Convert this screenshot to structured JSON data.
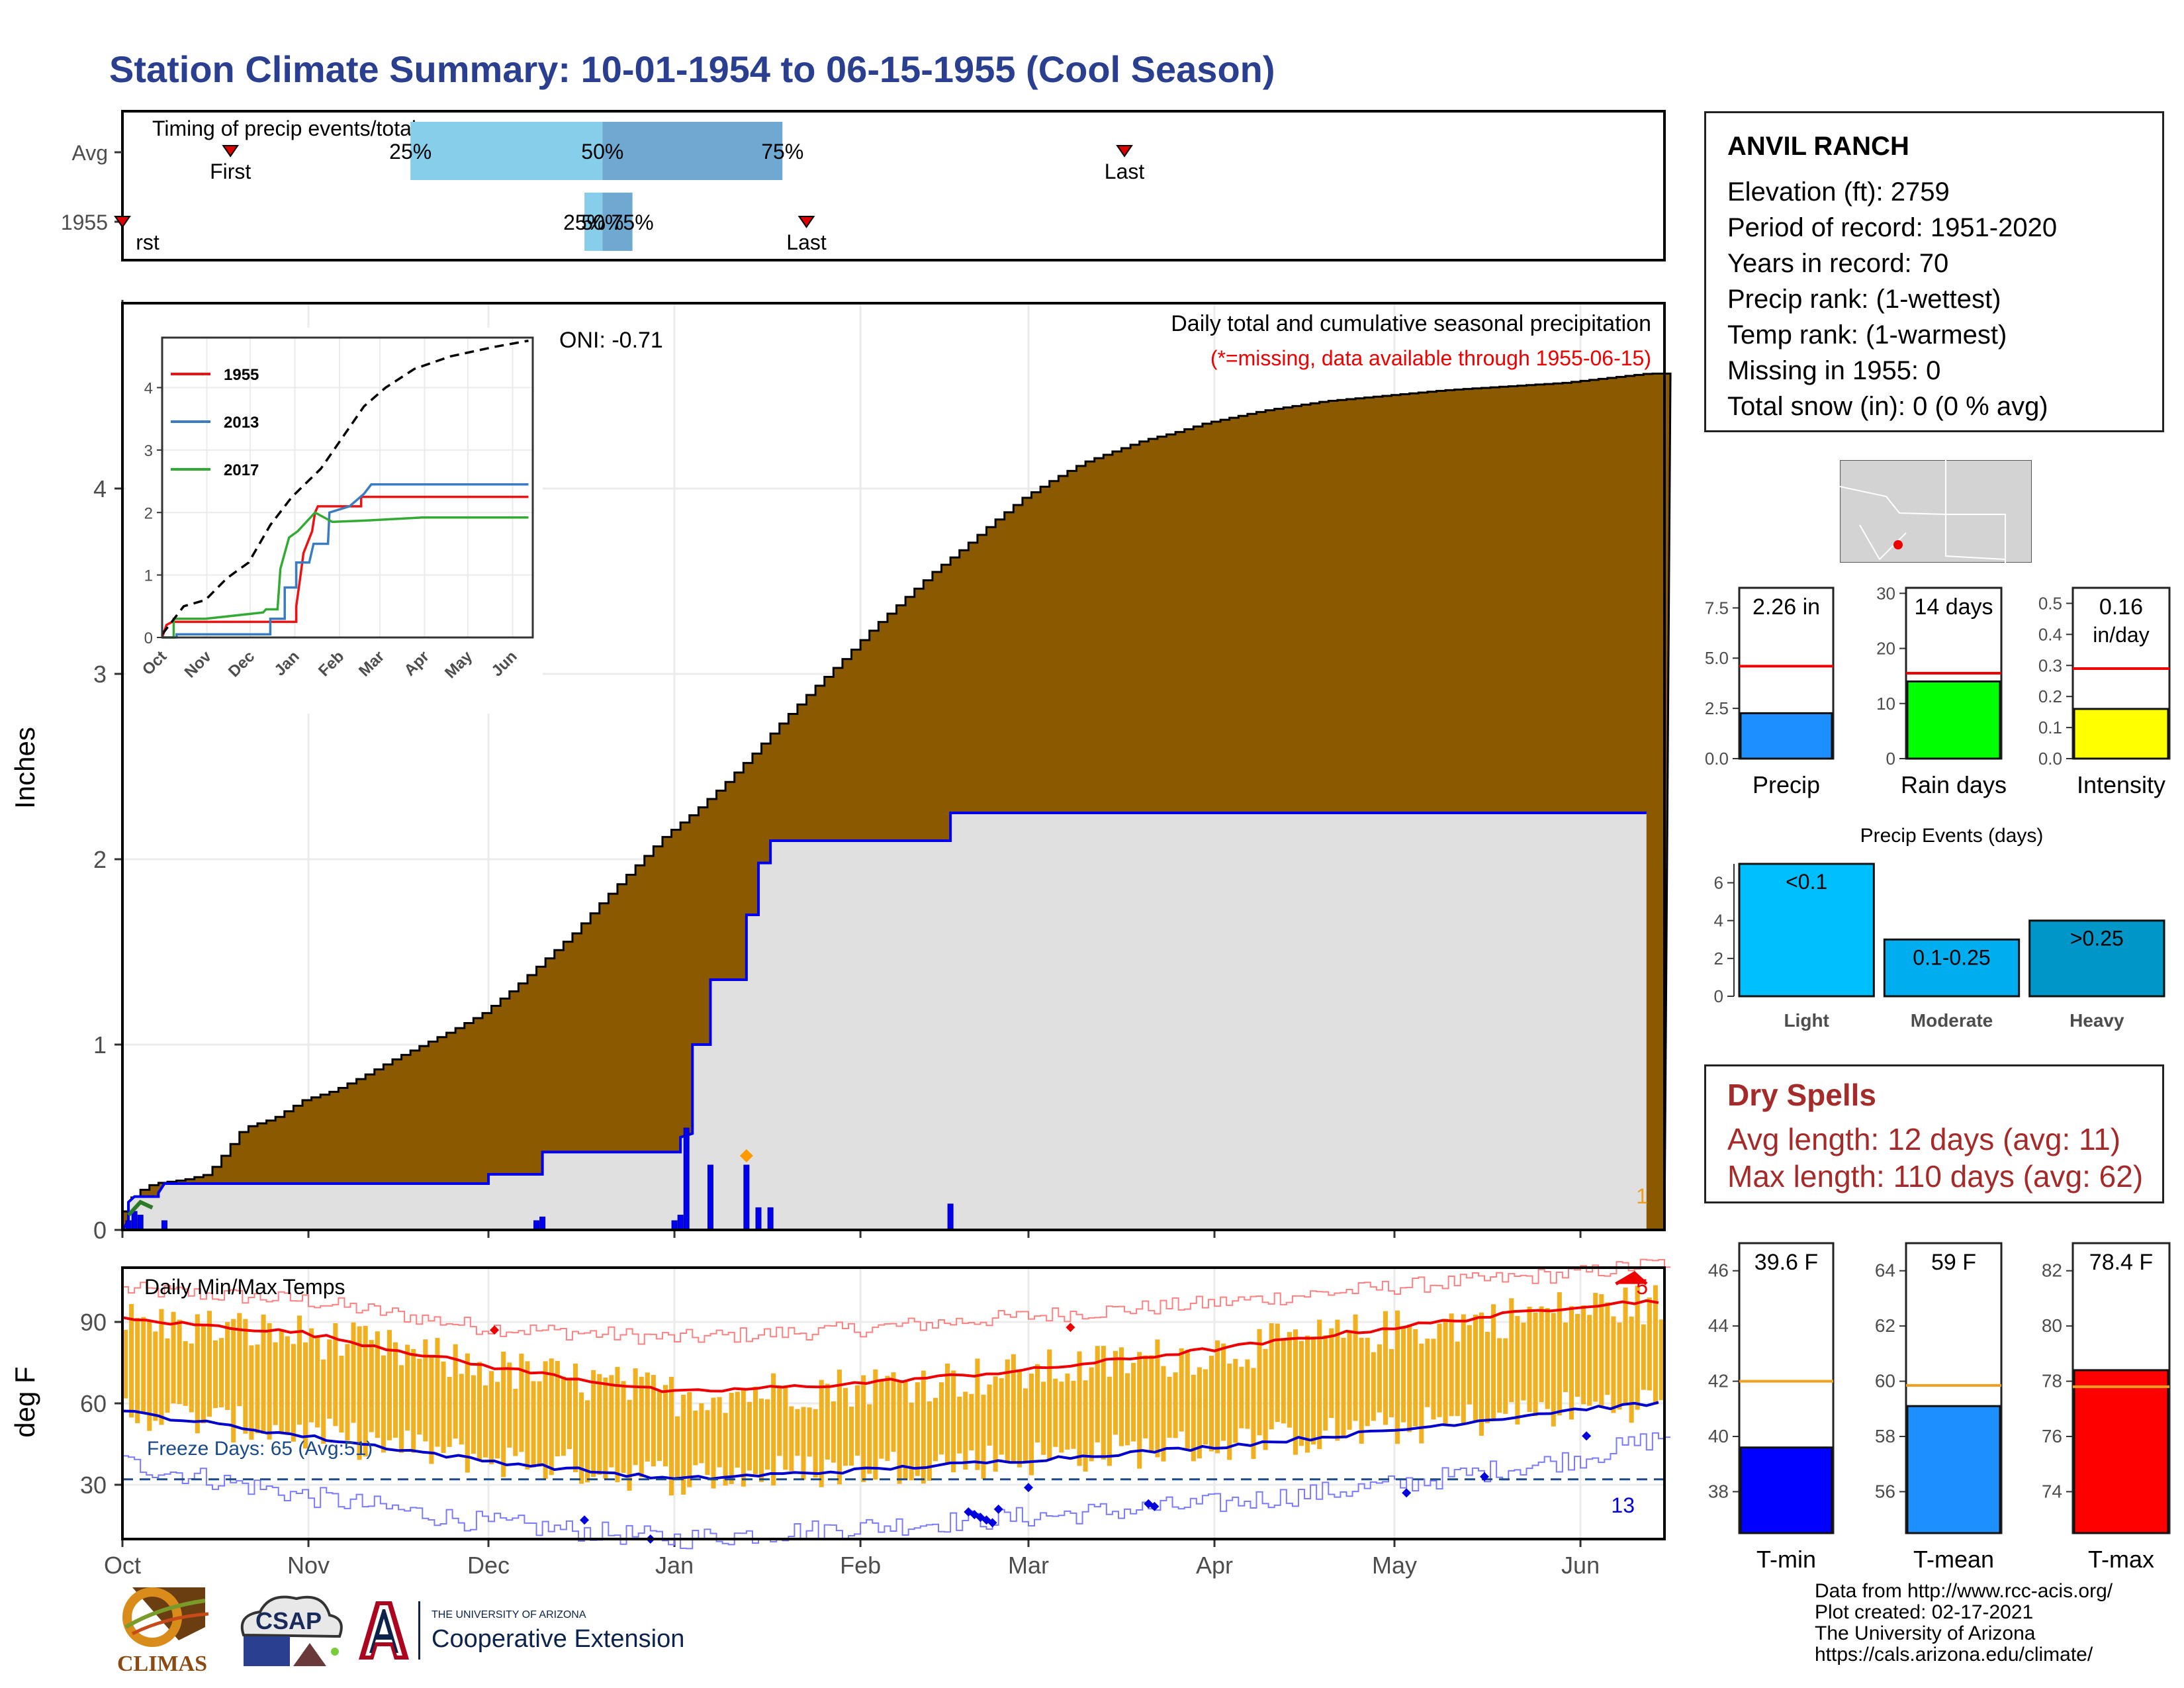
{
  "page_title": "Station Climate Summary: 10-01-1954 to 06-15-1955 (Cool Season)",
  "station": {
    "name": "ANVIL RANCH",
    "lines": [
      "Elevation (ft): 2759",
      "Period of record: 1951-2020",
      "Years in record: 70",
      "Precip rank:  (1-wettest)",
      "Temp rank:  (1-warmest)",
      "Missing in 1955: 0",
      "Total snow (in): 0 (0 % avg)"
    ]
  },
  "dry_spells": {
    "title": "Dry Spells",
    "avg_length": "Avg length: 12 days (avg: 11)",
    "max_length": "Max length: 110 days (avg: 62)"
  },
  "credits": {
    "lines": [
      "Data from http://www.rcc-acis.org/",
      "Plot created: 02-17-2021",
      "The University of Arizona",
      "https://cals.arizona.edu/climate/"
    ]
  },
  "logos": {
    "climas_text": "CLIMAS",
    "csap_text": "CSAP",
    "ua_line1": "THE UNIVERSITY OF ARIZONA",
    "ua_line2": "Cooperative Extension"
  },
  "colors": {
    "title": "#2a3f8f",
    "brown_fill": "#8b5a00",
    "grey_fill": "#e0e0e0",
    "blue_line": "#0000ee",
    "orange_bar": "#f0b020",
    "red": "#ee0000",
    "tmin_bar": "#0000ff",
    "tmean_bar": "#1e8fff",
    "tmax_bar": "#ff0000",
    "precip_bar": "#1e8fff",
    "raindays_bar": "#00ff00",
    "intensity_bar": "#ffff00",
    "light_bar": "#00bfff",
    "moderate_bar": "#00aeef",
    "heavy_bar": "#0096c8"
  },
  "chart_data": [
    {
      "id": "timing",
      "type": "bar",
      "title": "Timing of precip events/totals",
      "rows": [
        "Avg",
        "1955"
      ],
      "avg": {
        "first_day": 18,
        "last_day": 167,
        "p25": 48,
        "p50": 80,
        "p75": 110
      },
      "y1955": {
        "first_day": 0,
        "last_day": 114,
        "p25": 77,
        "p50": 80,
        "p75": 85
      },
      "labels": {
        "first": "First",
        "last": "Last",
        "p25": "25%",
        "p50": "50%",
        "p75": "75%",
        "first_clipped": "rst"
      }
    },
    {
      "id": "main_precip",
      "type": "area",
      "title": "Daily total and cumulative seasonal precipitation",
      "subtitle": "(*=missing, data available through 1955-06-15)",
      "oni": "ONI: -0.71",
      "ylabel": "Inches",
      "ylim": [
        0,
        5
      ],
      "yticks": [
        0,
        1,
        2,
        3,
        4
      ],
      "xticks": [
        "Oct",
        "Nov",
        "Dec",
        "Jan",
        "Feb",
        "Mar",
        "Apr",
        "May",
        "Jun"
      ],
      "xtick_days": [
        0,
        31,
        61,
        92,
        123,
        151,
        182,
        212,
        243
      ],
      "avg_cumulative": [
        [
          0,
          0.1
        ],
        [
          2,
          0.2
        ],
        [
          5,
          0.25
        ],
        [
          10,
          0.27
        ],
        [
          14,
          0.3
        ],
        [
          17,
          0.42
        ],
        [
          20,
          0.55
        ],
        [
          25,
          0.6
        ],
        [
          30,
          0.7
        ],
        [
          35,
          0.75
        ],
        [
          40,
          0.83
        ],
        [
          45,
          0.92
        ],
        [
          50,
          1.0
        ],
        [
          55,
          1.08
        ],
        [
          60,
          1.17
        ],
        [
          65,
          1.3
        ],
        [
          70,
          1.45
        ],
        [
          75,
          1.6
        ],
        [
          80,
          1.78
        ],
        [
          85,
          1.95
        ],
        [
          90,
          2.12
        ],
        [
          95,
          2.25
        ],
        [
          100,
          2.4
        ],
        [
          105,
          2.57
        ],
        [
          110,
          2.75
        ],
        [
          115,
          2.92
        ],
        [
          120,
          3.08
        ],
        [
          125,
          3.25
        ],
        [
          130,
          3.4
        ],
        [
          135,
          3.55
        ],
        [
          140,
          3.68
        ],
        [
          145,
          3.82
        ],
        [
          150,
          3.95
        ],
        [
          155,
          4.05
        ],
        [
          160,
          4.14
        ],
        [
          165,
          4.2
        ],
        [
          170,
          4.26
        ],
        [
          175,
          4.3
        ],
        [
          180,
          4.35
        ],
        [
          190,
          4.42
        ],
        [
          200,
          4.47
        ],
        [
          210,
          4.5
        ],
        [
          220,
          4.53
        ],
        [
          230,
          4.55
        ],
        [
          240,
          4.57
        ],
        [
          254,
          4.62
        ]
      ],
      "cumulative_1955": [
        [
          0,
          0
        ],
        [
          1,
          0.05
        ],
        [
          1,
          0.15
        ],
        [
          2,
          0.18
        ],
        [
          6,
          0.18
        ],
        [
          6,
          0.2
        ],
        [
          7,
          0.25
        ],
        [
          61,
          0.25
        ],
        [
          61,
          0.3
        ],
        [
          70,
          0.3
        ],
        [
          70,
          0.42
        ],
        [
          93,
          0.42
        ],
        [
          93,
          0.5
        ],
        [
          95,
          0.52
        ],
        [
          95,
          1.0
        ],
        [
          98,
          1.0
        ],
        [
          98,
          1.35
        ],
        [
          104,
          1.35
        ],
        [
          104,
          1.7
        ],
        [
          106,
          1.7
        ],
        [
          106,
          1.98
        ],
        [
          108,
          1.98
        ],
        [
          108,
          2.1
        ],
        [
          138,
          2.1
        ],
        [
          138,
          2.25
        ],
        [
          254,
          2.25
        ]
      ],
      "daily_1955": [
        [
          1,
          0.05
        ],
        [
          2,
          0.1
        ],
        [
          3,
          0.08
        ],
        [
          7,
          0.05
        ],
        [
          69,
          0.05
        ],
        [
          70,
          0.07
        ],
        [
          92,
          0.05
        ],
        [
          93,
          0.08
        ],
        [
          94,
          0.55
        ],
        [
          98,
          0.35
        ],
        [
          104,
          0.35
        ],
        [
          106,
          0.12
        ],
        [
          108,
          0.12
        ],
        [
          138,
          0.14
        ]
      ],
      "series": [
        {
          "name": "1955"
        }
      ],
      "corner_note": "1"
    },
    {
      "id": "inset",
      "type": "line",
      "ylim": [
        0,
        4.8
      ],
      "yticks": [
        0,
        1,
        2,
        3,
        4
      ],
      "xticks": [
        "Oct",
        "Nov",
        "Dec",
        "Jan",
        "Feb",
        "Mar",
        "Apr",
        "May",
        "Jun"
      ],
      "legend": [
        "1955",
        "2013",
        "2017"
      ],
      "series": [
        {
          "name": "1955",
          "color": "#ee1111",
          "points": [
            [
              0,
              0
            ],
            [
              3,
              0.2
            ],
            [
              7,
              0.25
            ],
            [
              93,
              0.25
            ],
            [
              93,
              0.5
            ],
            [
              96,
              1.0
            ],
            [
              98,
              1.35
            ],
            [
              104,
              1.7
            ],
            [
              106,
              2.0
            ],
            [
              108,
              2.1
            ],
            [
              138,
              2.1
            ],
            [
              138,
              2.25
            ],
            [
              254,
              2.25
            ]
          ]
        },
        {
          "name": "2013",
          "color": "#3a7cc0",
          "points": [
            [
              0,
              0
            ],
            [
              10,
              0
            ],
            [
              10,
              0.05
            ],
            [
              75,
              0.05
            ],
            [
              75,
              0.3
            ],
            [
              85,
              0.3
            ],
            [
              85,
              0.8
            ],
            [
              93,
              0.8
            ],
            [
              93,
              1.2
            ],
            [
              102,
              1.2
            ],
            [
              105,
              1.5
            ],
            [
              115,
              1.5
            ],
            [
              116,
              2.0
            ],
            [
              130,
              2.1
            ],
            [
              140,
              2.3
            ],
            [
              145,
              2.45
            ],
            [
              254,
              2.45
            ]
          ]
        },
        {
          "name": "2017",
          "color": "#33aa33",
          "points": [
            [
              0,
              0
            ],
            [
              8,
              0
            ],
            [
              8,
              0.3
            ],
            [
              30,
              0.3
            ],
            [
              70,
              0.4
            ],
            [
              72,
              0.45
            ],
            [
              80,
              0.45
            ],
            [
              82,
              1.1
            ],
            [
              88,
              1.6
            ],
            [
              94,
              1.7
            ],
            [
              100,
              1.85
            ],
            [
              106,
              2.0
            ],
            [
              118,
              1.85
            ],
            [
              140,
              1.87
            ],
            [
              180,
              1.92
            ],
            [
              254,
              1.92
            ]
          ]
        },
        {
          "name": "avg",
          "color": "#000000",
          "dashed": true,
          "points": [
            [
              0,
              0.05
            ],
            [
              15,
              0.5
            ],
            [
              30,
              0.6
            ],
            [
              45,
              0.95
            ],
            [
              60,
              1.2
            ],
            [
              75,
              1.8
            ],
            [
              90,
              2.25
            ],
            [
              110,
              2.7
            ],
            [
              125,
              3.2
            ],
            [
              140,
              3.7
            ],
            [
              155,
              4.0
            ],
            [
              175,
              4.3
            ],
            [
              200,
              4.5
            ],
            [
              230,
              4.65
            ],
            [
              254,
              4.75
            ]
          ]
        }
      ]
    },
    {
      "id": "precip_summary",
      "type": "bar",
      "panels": [
        {
          "label": "Precip",
          "value": 2.26,
          "text": "2.26 in",
          "avg": 4.6,
          "ylim": [
            0,
            8.5
          ],
          "yticks": [
            "0.0",
            "2.5",
            "5.0",
            "7.5"
          ],
          "ytick_vals": [
            0,
            2.5,
            5.0,
            7.5
          ],
          "color": "#1e8fff"
        },
        {
          "label": "Rain days",
          "value": 14,
          "text": "14 days",
          "avg": 15.5,
          "ylim": [
            0,
            31
          ],
          "yticks": [
            "0",
            "10",
            "20",
            "30"
          ],
          "ytick_vals": [
            0,
            10,
            20,
            30
          ],
          "color": "#00ff00"
        },
        {
          "label": "Intensity",
          "value": 0.16,
          "text": "0.16 in/day",
          "avg": 0.29,
          "ylim": [
            0,
            0.55
          ],
          "yticks": [
            "0.0",
            "0.1",
            "0.2",
            "0.3",
            "0.4",
            "0.5"
          ],
          "ytick_vals": [
            0,
            0.1,
            0.2,
            0.3,
            0.4,
            0.5
          ],
          "color": "#ffff00"
        }
      ]
    },
    {
      "id": "precip_events",
      "type": "bar",
      "title": "Precip Events (days)",
      "categories": [
        "Light",
        "Moderate",
        "Heavy"
      ],
      "values": [
        7,
        3,
        4
      ],
      "bar_labels": [
        "<0.1",
        "0.1-0.25",
        ">0.25"
      ],
      "ylim": [
        0,
        7
      ],
      "yticks": [
        0,
        2,
        4,
        6
      ]
    },
    {
      "id": "temps",
      "type": "bar",
      "title": "Daily Min/Max Temps",
      "ylabel": "deg F",
      "ylim": [
        10,
        110
      ],
      "yticks": [
        30,
        60,
        90
      ],
      "xticks": [
        "Oct",
        "Nov",
        "Dec",
        "Jan",
        "Feb",
        "Mar",
        "Apr",
        "May",
        "Jun"
      ],
      "freeze_line": 32,
      "freeze_note": "Freeze Days: 65 (Avg:51)",
      "record_high_count": "5",
      "record_low_count": "13",
      "avg_max": [
        [
          0,
          91
        ],
        [
          30,
          86
        ],
        [
          60,
          74
        ],
        [
          92,
          64
        ],
        [
          120,
          67
        ],
        [
          150,
          72
        ],
        [
          182,
          80
        ],
        [
          212,
          88
        ],
        [
          243,
          96
        ],
        [
          257,
          98
        ]
      ],
      "avg_min": [
        [
          0,
          57
        ],
        [
          30,
          48
        ],
        [
          60,
          39
        ],
        [
          92,
          32
        ],
        [
          120,
          35
        ],
        [
          150,
          39
        ],
        [
          182,
          44
        ],
        [
          212,
          50
        ],
        [
          243,
          58
        ],
        [
          257,
          60
        ]
      ],
      "rec_max": [
        [
          0,
          102
        ],
        [
          30,
          98
        ],
        [
          60,
          88
        ],
        [
          92,
          84
        ],
        [
          120,
          87
        ],
        [
          150,
          92
        ],
        [
          182,
          97
        ],
        [
          212,
          103
        ],
        [
          243,
          108
        ],
        [
          257,
          112
        ]
      ],
      "rec_min": [
        [
          0,
          38
        ],
        [
          30,
          26
        ],
        [
          60,
          16
        ],
        [
          92,
          10
        ],
        [
          120,
          14
        ],
        [
          150,
          18
        ],
        [
          182,
          23
        ],
        [
          212,
          30
        ],
        [
          243,
          40
        ],
        [
          257,
          48
        ]
      ]
    },
    {
      "id": "temp_summary",
      "type": "bar",
      "panels": [
        {
          "label": "T-min",
          "value": 39.6,
          "text": "39.6 F",
          "avg": 42.0,
          "ylim": [
            36.5,
            47
          ],
          "yticks": [
            38,
            40,
            42,
            44,
            46
          ],
          "color": "#0000ff"
        },
        {
          "label": "T-mean",
          "value": 59.1,
          "text": "59 F",
          "avg": 59.85,
          "ylim": [
            54.5,
            65
          ],
          "yticks": [
            56,
            58,
            60,
            62,
            64
          ],
          "color": "#1e8fff"
        },
        {
          "label": "T-max",
          "value": 78.4,
          "text": "78.4 F",
          "avg": 77.8,
          "ylim": [
            72.5,
            83
          ],
          "yticks": [
            74,
            76,
            78,
            80,
            82
          ],
          "color": "#ff0000"
        }
      ]
    }
  ]
}
